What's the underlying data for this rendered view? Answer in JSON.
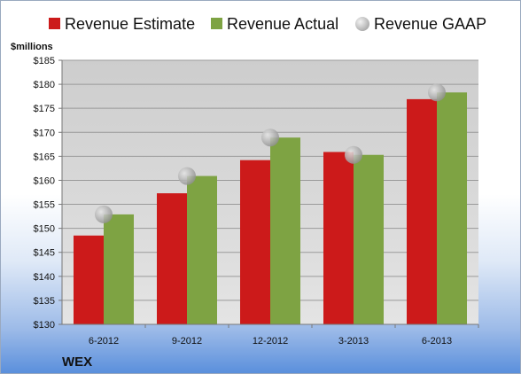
{
  "ticker": "WEX",
  "chart_data": {
    "type": "bar",
    "unit_label": "$millions",
    "categories": [
      "6-2012",
      "9-2012",
      "12-2012",
      "3-2013",
      "6-2013"
    ],
    "series": [
      {
        "name": "Revenue Estimate",
        "kind": "bar",
        "color": "#cc1a1a",
        "values": [
          148.5,
          157.3,
          164.2,
          165.9,
          176.9
        ]
      },
      {
        "name": "Revenue Actual",
        "kind": "bar",
        "color": "#7ea343",
        "values": [
          152.9,
          160.9,
          168.9,
          165.3,
          178.3
        ]
      },
      {
        "name": "Revenue GAAP",
        "kind": "marker",
        "color": "#b0b0b0",
        "values": [
          152.9,
          160.9,
          168.9,
          165.3,
          178.3
        ]
      }
    ],
    "ylim": [
      130,
      185
    ],
    "ytick_step": 5,
    "ytick_prefix": "$",
    "grid": true,
    "legend_position": "top"
  }
}
